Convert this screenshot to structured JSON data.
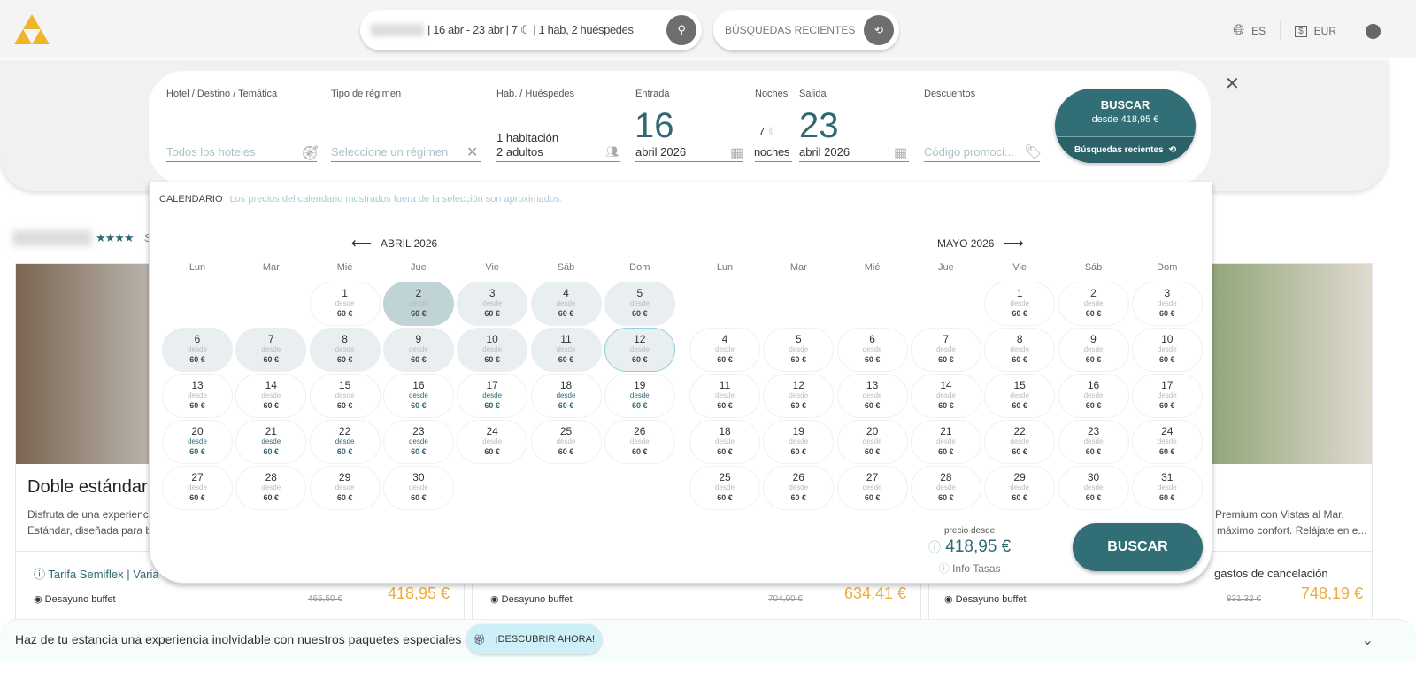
{
  "header": {
    "summary": "| 16 abr - 23 abr | 7 ☾ | 1 hab, 2 huéspedes",
    "recent": "BÚSQUEDAS RECIENTES",
    "lang": "ES",
    "currency": "EUR"
  },
  "search": {
    "hotel": {
      "label": "Hotel / Destino / Temática",
      "placeholder": "Todos los hoteles"
    },
    "regimen": {
      "label": "Tipo de régimen",
      "placeholder": "Seleccione un régimen"
    },
    "guests": {
      "label": "Hab. / Huéspedes",
      "rooms": "1 habitación",
      "adults": "2 adultos"
    },
    "checkin": {
      "label": "Entrada",
      "day": "16",
      "month": "abril 2026"
    },
    "nights": {
      "label": "Noches",
      "value": "7",
      "unit": "noches"
    },
    "checkout": {
      "label": "Salida",
      "day": "23",
      "month": "abril 2026"
    },
    "discounts": {
      "label": "Descuentos",
      "placeholder": "Código promoci..."
    },
    "buscar": {
      "title": "BUSCAR",
      "price": "desde 418,95 €",
      "recent": "Búsquedas recientes"
    },
    "close": "✕"
  },
  "calendar": {
    "title": "CALENDARIO",
    "note": "Los precios del calendario mostrados fuera de la selección son aproximados.",
    "weekdays": [
      "Lun",
      "Mar",
      "Mié",
      "Jue",
      "Vie",
      "Sáb",
      "Dom"
    ],
    "from_label": "desde",
    "price": "60 €",
    "months": [
      {
        "label": "ABRIL 2026",
        "offset": 2,
        "days": 30,
        "today": 2,
        "shaded": [
          3,
          4,
          5,
          6,
          7,
          8,
          9,
          10,
          11
        ],
        "outlined": 12,
        "selected": [
          16,
          23
        ]
      },
      {
        "label": "MAYO 2026",
        "offset": 4,
        "days": 31,
        "today": 0,
        "shaded": [],
        "outlined": 0,
        "selected": [
          0,
          0
        ]
      }
    ],
    "price_from_label": "precio desde",
    "total": "418,95 €",
    "info_tasas": "Info Tasas",
    "buscar": "BUSCAR"
  },
  "background": {
    "stars": "★★★★",
    "stars_suffix": "S",
    "room1": {
      "title": "Doble estándar",
      "desc1": "Disfruta de una experienci",
      "desc2": "Estándar, diseñada para bi",
      "rate": "Tarifa Semiflex | Varia",
      "board": "Desayuno buffet",
      "old": "465,50 €",
      "price": "418,95 €"
    },
    "room2": {
      "old": "704,90 €",
      "price": "634,41 €",
      "board": "Desayuno buffet"
    },
    "room3": {
      "desc1": "e Premium con Vistas al Mar,",
      "desc2": "máximo confort. Relájate en e...",
      "rate": "gastos de cancelación",
      "board": "Desayuno buffet",
      "old": "831,32 €",
      "price": "748,19 €"
    }
  },
  "banner": {
    "text": "Haz de tu estancia una experiencia inolvidable con nuestros paquetes especiales",
    "cta": "¡DESCUBRIR AHORA!"
  }
}
